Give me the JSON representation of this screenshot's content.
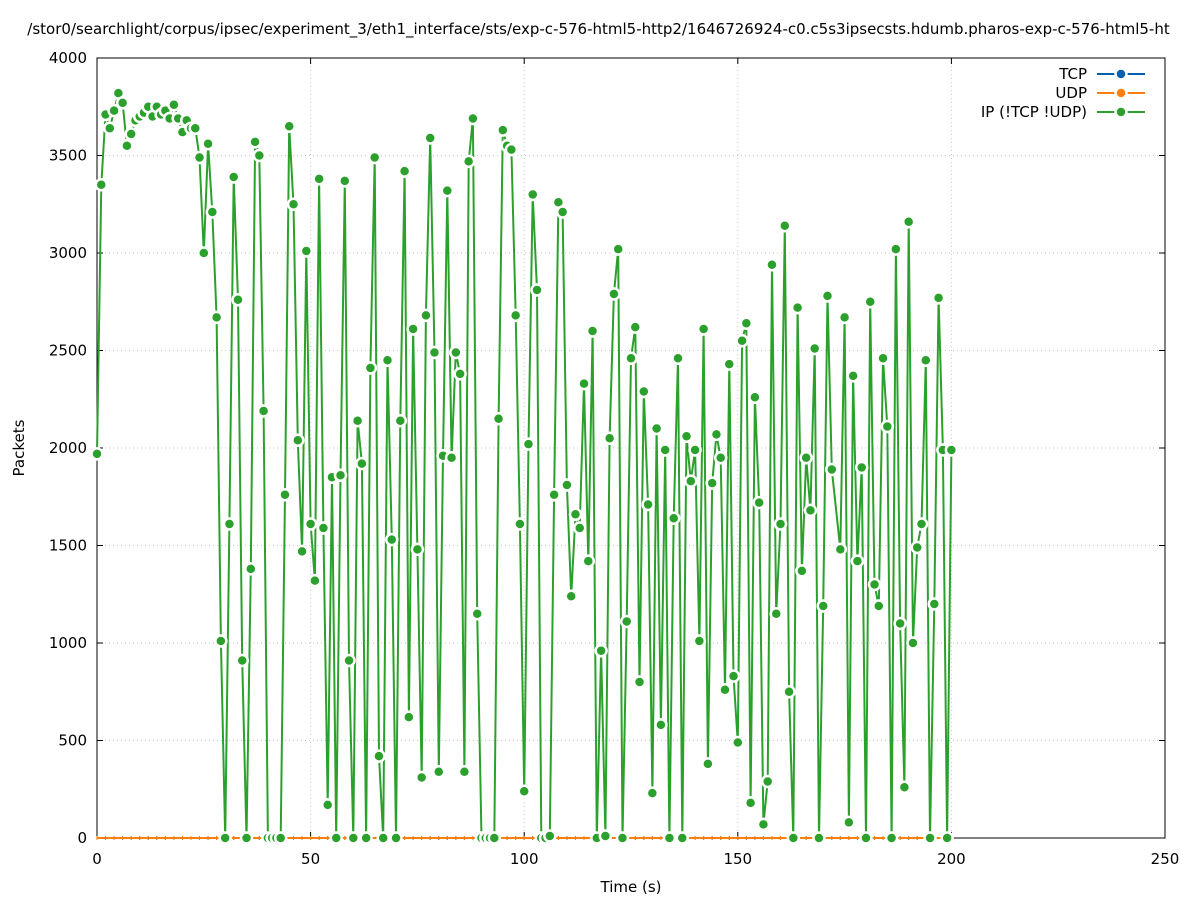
{
  "chart_data": {
    "type": "line",
    "title": "/stor0/searchlight/corpus/ipsec/experiment_3/eth1_interface/sts/exp-c-576-html5-http2/1646726924-c0.c5s3ipsecsts.hdumb.pharos-exp-c-576-html5-ht",
    "xlabel": "Time (s)",
    "ylabel": "Packets",
    "xlim": [
      0,
      250
    ],
    "ylim": [
      0,
      4000
    ],
    "xticks": [
      0,
      50,
      100,
      150,
      200,
      250
    ],
    "yticks": [
      0,
      500,
      1000,
      1500,
      2000,
      2500,
      3000,
      3500,
      4000
    ],
    "grid": true,
    "legend_position": "top-right",
    "colors": {
      "TCP": "#0060ad",
      "UDP": "#ff7f0e",
      "IP": "#2ca02c"
    },
    "series": [
      {
        "name": "TCP",
        "x": [
          0,
          2,
          4,
          6,
          8,
          10,
          12,
          14,
          16,
          18,
          20,
          22,
          24,
          26,
          28,
          30,
          32,
          34,
          36,
          38,
          40,
          42,
          44,
          46,
          48,
          50,
          52,
          54,
          56,
          58,
          60,
          62,
          64,
          66,
          68,
          70,
          72,
          74,
          76,
          78,
          80,
          82,
          84,
          86,
          88,
          90,
          92,
          94,
          96,
          98,
          100,
          102,
          104,
          106,
          108,
          110,
          112,
          114,
          116,
          118,
          120,
          122,
          124,
          126,
          128,
          130,
          132,
          134,
          136,
          138,
          140,
          142,
          144,
          146,
          148,
          150,
          152,
          154,
          156,
          158,
          160,
          162,
          164,
          166,
          168,
          170,
          172,
          174,
          176,
          178,
          180,
          182,
          184,
          186,
          188,
          190,
          192,
          194,
          196,
          198,
          200
        ],
        "values": [
          0,
          0,
          0,
          0,
          0,
          0,
          0,
          0,
          0,
          0,
          0,
          0,
          0,
          0,
          0,
          0,
          0,
          0,
          0,
          0,
          0,
          0,
          0,
          0,
          0,
          0,
          0,
          0,
          0,
          0,
          0,
          0,
          0,
          0,
          0,
          0,
          0,
          0,
          0,
          0,
          0,
          0,
          0,
          0,
          0,
          0,
          0,
          0,
          0,
          0,
          0,
          0,
          0,
          0,
          0,
          0,
          0,
          0,
          0,
          0,
          0,
          0,
          0,
          0,
          0,
          0,
          0,
          0,
          0,
          0,
          0,
          0,
          0,
          0,
          0,
          0,
          0,
          0,
          0,
          0,
          0,
          0,
          0,
          0,
          0,
          0,
          0,
          0,
          0,
          0,
          0,
          0,
          0,
          0,
          0,
          0,
          0,
          0,
          0,
          0,
          0
        ]
      },
      {
        "name": "UDP",
        "x": [
          0,
          2,
          4,
          6,
          8,
          10,
          12,
          14,
          16,
          18,
          20,
          22,
          24,
          26,
          28,
          30,
          32,
          34,
          36,
          38,
          40,
          42,
          44,
          46,
          48,
          50,
          52,
          54,
          56,
          58,
          60,
          62,
          64,
          66,
          68,
          70,
          72,
          74,
          76,
          78,
          80,
          82,
          84,
          86,
          88,
          90,
          92,
          94,
          96,
          98,
          100,
          102,
          104,
          106,
          108,
          110,
          112,
          114,
          116,
          118,
          120,
          122,
          124,
          126,
          128,
          130,
          132,
          134,
          136,
          138,
          140,
          142,
          144,
          146,
          148,
          150,
          152,
          154,
          156,
          158,
          160,
          162,
          164,
          166,
          168,
          170,
          172,
          174,
          176,
          178,
          180,
          182,
          184,
          186,
          188,
          190,
          192,
          194,
          196,
          198,
          200
        ],
        "values": [
          0,
          0,
          0,
          0,
          0,
          0,
          0,
          0,
          0,
          0,
          0,
          0,
          0,
          0,
          0,
          0,
          0,
          0,
          0,
          0,
          0,
          0,
          0,
          0,
          0,
          0,
          0,
          0,
          0,
          0,
          0,
          0,
          0,
          0,
          0,
          0,
          0,
          0,
          0,
          0,
          0,
          0,
          0,
          0,
          0,
          0,
          0,
          0,
          0,
          0,
          0,
          0,
          0,
          0,
          0,
          0,
          0,
          0,
          0,
          0,
          0,
          0,
          0,
          0,
          0,
          0,
          0,
          0,
          0,
          0,
          0,
          0,
          0,
          0,
          0,
          0,
          0,
          0,
          0,
          0,
          0,
          0,
          0,
          0,
          0,
          0,
          0,
          0,
          0,
          0,
          0,
          0,
          0,
          0,
          0,
          0,
          0,
          0,
          0,
          0,
          0
        ]
      },
      {
        "name": "IP (!TCP  !UDP)",
        "x": [
          0,
          1,
          2,
          3,
          4,
          5,
          6,
          7,
          8,
          9,
          10,
          11,
          12,
          13,
          14,
          15,
          16,
          17,
          18,
          19,
          20,
          21,
          22,
          23,
          24,
          25,
          26,
          27,
          28,
          29,
          30,
          31,
          32,
          33,
          34,
          35,
          36,
          37,
          38,
          39,
          40,
          41,
          42,
          43,
          44,
          45,
          46,
          47,
          48,
          49,
          50,
          51,
          52,
          53,
          54,
          55,
          56,
          57,
          58,
          59,
          60,
          61,
          62,
          63,
          64,
          65,
          66,
          67,
          68,
          69,
          70,
          71,
          72,
          73,
          74,
          75,
          76,
          77,
          78,
          79,
          80,
          81,
          82,
          83,
          84,
          85,
          86,
          87,
          88,
          89,
          90,
          91,
          92,
          93,
          94,
          95,
          96,
          97,
          98,
          99,
          100,
          101,
          102,
          103,
          104,
          105,
          106,
          107,
          108,
          109,
          110,
          111,
          112,
          113,
          114,
          115,
          116,
          117,
          118,
          119,
          120,
          121,
          122,
          123,
          124,
          125,
          126,
          127,
          128,
          129,
          130,
          131,
          132,
          133,
          134,
          135,
          136,
          137,
          138,
          139,
          140,
          141,
          142,
          143,
          144,
          145,
          146,
          147,
          148,
          149,
          150,
          151,
          152,
          153,
          154,
          155,
          156,
          157,
          158,
          159,
          160,
          161,
          162,
          163,
          164,
          165,
          166,
          167,
          168,
          169,
          170,
          171,
          172,
          174,
          175,
          176,
          177,
          178,
          179,
          180,
          181,
          182,
          183,
          184,
          185,
          186,
          187,
          188,
          189,
          190,
          191,
          192,
          193,
          194,
          195,
          196,
          197,
          198,
          199,
          200
        ],
        "values": [
          1970,
          3350,
          3710,
          3640,
          3730,
          3820,
          3770,
          3550,
          3610,
          3680,
          3700,
          3720,
          3750,
          3700,
          3750,
          3710,
          3730,
          3690,
          3760,
          3690,
          3620,
          3680,
          3640,
          3640,
          3490,
          3000,
          3560,
          3210,
          2670,
          1010,
          0,
          1610,
          3390,
          2760,
          910,
          0,
          1380,
          3570,
          3500,
          2190,
          0,
          0,
          0,
          0,
          1760,
          3650,
          3250,
          2040,
          1470,
          3010,
          1610,
          1320,
          3380,
          1590,
          170,
          1850,
          0,
          1860,
          3370,
          910,
          0,
          2140,
          1920,
          0,
          2410,
          3490,
          420,
          0,
          2450,
          1530,
          0,
          2140,
          3420,
          620,
          2610,
          1480,
          310,
          2680,
          3590,
          2490,
          340,
          1960,
          3320,
          1950,
          2490,
          2380,
          340,
          3470,
          3690,
          1150,
          0,
          0,
          0,
          0,
          2150,
          3630,
          3550,
          3530,
          2680,
          1610,
          240,
          2020,
          3300,
          2810,
          0,
          0,
          10,
          1760,
          3260,
          3210,
          1810,
          1240,
          1660,
          1590,
          2330,
          1420,
          2600,
          0,
          960,
          10,
          2050,
          2790,
          3020,
          0,
          1110,
          2460,
          2620,
          800,
          2290,
          1710,
          230,
          2100,
          580,
          1990,
          0,
          1640,
          2460,
          0,
          2060,
          1830,
          1990,
          1010,
          2610,
          380,
          1820,
          2070,
          1950,
          760,
          2430,
          830,
          490,
          2550,
          2640,
          180,
          2260,
          1720,
          70,
          290,
          2940,
          1150,
          1610,
          3140,
          750,
          0,
          2720,
          1370,
          1950,
          1680,
          2510,
          0,
          1190,
          2780,
          1890,
          1480,
          2670,
          80,
          2370,
          1420,
          1900,
          0,
          2750,
          1300,
          1190,
          2460,
          2110,
          0,
          3020,
          1100,
          260,
          3160,
          1000,
          1490,
          1610,
          2450,
          0,
          1200,
          2770,
          1990,
          0,
          1990
        ]
      }
    ]
  }
}
